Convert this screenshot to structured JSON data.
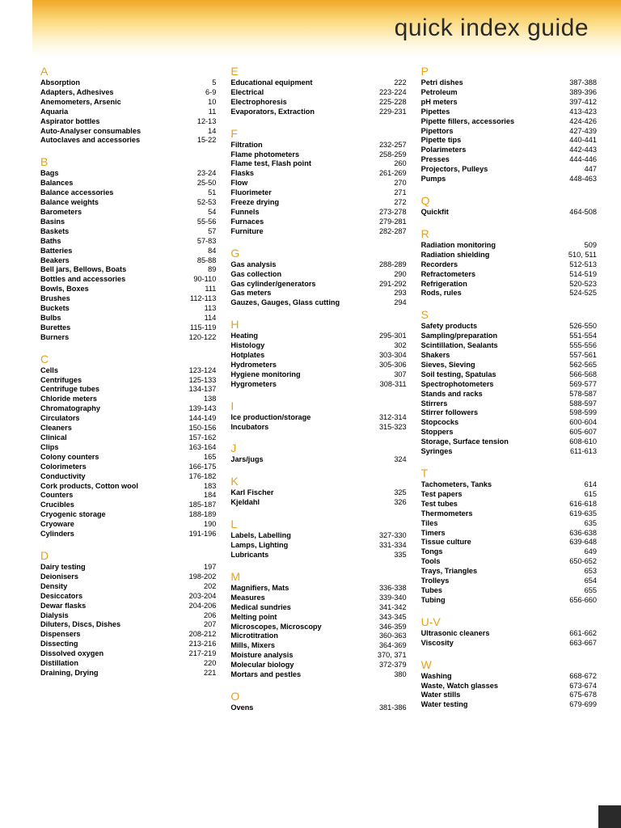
{
  "title": "quick index guide",
  "layout": {
    "columns": 3
  },
  "style": {
    "banner_gradient": [
      "#f0a828",
      "#fbd77a",
      "#fef3d1",
      "#ffffff"
    ],
    "letter_color": "#e8a017",
    "text_color": "#000000",
    "title_color": "#2a2a2a",
    "title_fontsize": 30,
    "letter_fontsize": 14,
    "row_fontsize": 9.2,
    "row_lineheight": 11.9,
    "corner_color": "#2a2a2a",
    "font_family": "Arial, Helvetica, sans-serif"
  },
  "columns": [
    [
      {
        "letter": "A",
        "items": [
          {
            "label": "Absorption",
            "pages": "5"
          },
          {
            "label": "Adapters, Adhesives",
            "pages": "6-9"
          },
          {
            "label": "Anemometers, Arsenic",
            "pages": "10"
          },
          {
            "label": "Aquaria",
            "pages": "11"
          },
          {
            "label": "Aspirator bottles",
            "pages": "12-13"
          },
          {
            "label": "Auto-Analyser consumables",
            "pages": "14"
          },
          {
            "label": "Autoclaves and accessories",
            "pages": "15-22"
          }
        ]
      },
      {
        "letter": "B",
        "items": [
          {
            "label": "Bags",
            "pages": "23-24"
          },
          {
            "label": "Balances",
            "pages": "25-50"
          },
          {
            "label": "Balance accessories",
            "pages": "51"
          },
          {
            "label": "Balance weights",
            "pages": "52-53"
          },
          {
            "label": "Barometers",
            "pages": "54"
          },
          {
            "label": "Basins",
            "pages": "55-56"
          },
          {
            "label": "Baskets",
            "pages": "57"
          },
          {
            "label": "Baths",
            "pages": "57-83"
          },
          {
            "label": "Batteries",
            "pages": "84"
          },
          {
            "label": "Beakers",
            "pages": "85-88"
          },
          {
            "label": "Bell jars, Bellows, Boats",
            "pages": "89"
          },
          {
            "label": "Bottles and accessories",
            "pages": "90-110"
          },
          {
            "label": "Bowls, Boxes",
            "pages": "111"
          },
          {
            "label": "Brushes",
            "pages": "112-113"
          },
          {
            "label": "Buckets",
            "pages": "113"
          },
          {
            "label": "Bulbs",
            "pages": "114"
          },
          {
            "label": "Burettes",
            "pages": "115-119"
          },
          {
            "label": "Burners",
            "pages": "120-122"
          }
        ]
      },
      {
        "letter": "C",
        "items": [
          {
            "label": "Cells",
            "pages": "123-124"
          },
          {
            "label": "Centrifuges",
            "pages": "125-133"
          },
          {
            "label": "Centrifuge tubes",
            "pages": "134-137"
          },
          {
            "label": "Chloride meters",
            "pages": "138"
          },
          {
            "label": "Chromatography",
            "pages": "139-143"
          },
          {
            "label": "Circulators",
            "pages": "144-149"
          },
          {
            "label": "Cleaners",
            "pages": "150-156"
          },
          {
            "label": "Clinical",
            "pages": "157-162"
          },
          {
            "label": "Clips",
            "pages": "163-164"
          },
          {
            "label": "Colony counters",
            "pages": "165"
          },
          {
            "label": "Colorimeters",
            "pages": "166-175"
          },
          {
            "label": "Conductivity",
            "pages": "176-182"
          },
          {
            "label": "Cork products, Cotton wool",
            "pages": "183"
          },
          {
            "label": "Counters",
            "pages": "184"
          },
          {
            "label": "Crucibles",
            "pages": "185-187"
          },
          {
            "label": "Cryogenic storage",
            "pages": "188-189"
          },
          {
            "label": "Cryoware",
            "pages": "190"
          },
          {
            "label": "Cylinders",
            "pages": "191-196"
          }
        ]
      },
      {
        "letter": "D",
        "items": [
          {
            "label": "Dairy testing",
            "pages": "197"
          },
          {
            "label": "Deionisers",
            "pages": "198-202"
          },
          {
            "label": "Density",
            "pages": "202"
          },
          {
            "label": "Desiccators",
            "pages": "203-204"
          },
          {
            "label": "Dewar flasks",
            "pages": "204-206"
          },
          {
            "label": "Dialysis",
            "pages": "206"
          },
          {
            "label": "Diluters, Discs, Dishes",
            "pages": "207"
          },
          {
            "label": "Dispensers",
            "pages": "208-212"
          },
          {
            "label": "Dissecting",
            "pages": "213-216"
          },
          {
            "label": "Dissolved oxygen",
            "pages": "217-219"
          },
          {
            "label": "Distillation",
            "pages": "220"
          },
          {
            "label": "Draining, Drying",
            "pages": "221"
          }
        ]
      }
    ],
    [
      {
        "letter": "E",
        "items": [
          {
            "label": "Educational equipment",
            "pages": "222"
          },
          {
            "label": "Electrical",
            "pages": "223-224"
          },
          {
            "label": "Electrophoresis",
            "pages": "225-228"
          },
          {
            "label": "Evaporators, Extraction",
            "pages": "229-231"
          }
        ]
      },
      {
        "letter": "F",
        "items": [
          {
            "label": "Filtration",
            "pages": "232-257"
          },
          {
            "label": "Flame photometers",
            "pages": "258-259"
          },
          {
            "label": "Flame test, Flash point",
            "pages": "260"
          },
          {
            "label": "Flasks",
            "pages": "261-269"
          },
          {
            "label": "Flow",
            "pages": "270"
          },
          {
            "label": "Fluorimeter",
            "pages": "271"
          },
          {
            "label": "Freeze drying",
            "pages": "272"
          },
          {
            "label": "Funnels",
            "pages": "273-278"
          },
          {
            "label": "Furnaces",
            "pages": "279-281"
          },
          {
            "label": "Furniture",
            "pages": "282-287"
          }
        ]
      },
      {
        "letter": "G",
        "items": [
          {
            "label": "Gas analysis",
            "pages": "288-289"
          },
          {
            "label": "Gas collection",
            "pages": "290"
          },
          {
            "label": "Gas cylinder/generators",
            "pages": "291-292"
          },
          {
            "label": "Gas meters",
            "pages": "293"
          },
          {
            "label": "Gauzes, Gauges, Glass cutting",
            "pages": "294"
          }
        ]
      },
      {
        "letter": "H",
        "items": [
          {
            "label": "Heating",
            "pages": "295-301"
          },
          {
            "label": "Histology",
            "pages": "302"
          },
          {
            "label": "Hotplates",
            "pages": "303-304"
          },
          {
            "label": "Hydrometers",
            "pages": "305-306"
          },
          {
            "label": "Hygiene monitoring",
            "pages": "307"
          },
          {
            "label": "Hygrometers",
            "pages": "308-311"
          }
        ]
      },
      {
        "letter": "I",
        "items": [
          {
            "label": "Ice production/storage",
            "pages": "312-314"
          },
          {
            "label": "Incubators",
            "pages": "315-323"
          }
        ]
      },
      {
        "letter": "J",
        "items": [
          {
            "label": "Jars/jugs",
            "pages": "324"
          }
        ]
      },
      {
        "letter": "K",
        "items": [
          {
            "label": "Karl Fischer",
            "pages": "325"
          },
          {
            "label": "Kjeldahl",
            "pages": "326"
          }
        ]
      },
      {
        "letter": "L",
        "items": [
          {
            "label": "Labels, Labelling",
            "pages": "327-330"
          },
          {
            "label": "Lamps, Lighting",
            "pages": "331-334"
          },
          {
            "label": "Lubricants",
            "pages": "335"
          }
        ]
      },
      {
        "letter": "M",
        "items": [
          {
            "label": "Magnifiers, Mats",
            "pages": "336-338"
          },
          {
            "label": "Measures",
            "pages": "339-340"
          },
          {
            "label": "Medical sundries",
            "pages": "341-342"
          },
          {
            "label": "Melting point",
            "pages": "343-345"
          },
          {
            "label": "Microscopes, Microscopy",
            "pages": "346-359"
          },
          {
            "label": "Microtitration",
            "pages": "360-363"
          },
          {
            "label": "Mills, Mixers",
            "pages": "364-369"
          },
          {
            "label": "Moisture analysis",
            "pages": "370, 371"
          },
          {
            "label": "Molecular biology",
            "pages": "372-379"
          },
          {
            "label": "Mortars and pestles",
            "pages": "380"
          }
        ]
      },
      {
        "letter": "O",
        "items": [
          {
            "label": "Ovens",
            "pages": "381-386"
          }
        ]
      }
    ],
    [
      {
        "letter": "P",
        "items": [
          {
            "label": "Petri dishes",
            "pages": "387-388"
          },
          {
            "label": "Petroleum",
            "pages": "389-396"
          },
          {
            "label": "pH meters",
            "pages": "397-412"
          },
          {
            "label": "Pipettes",
            "pages": "413-423"
          },
          {
            "label": "Pipette fillers, accessories",
            "pages": "424-426"
          },
          {
            "label": "Pipettors",
            "pages": "427-439"
          },
          {
            "label": "Pipette tips",
            "pages": "440-441"
          },
          {
            "label": "Polarimeters",
            "pages": "442-443"
          },
          {
            "label": "Presses",
            "pages": "444-446"
          },
          {
            "label": "Projectors, Pulleys",
            "pages": "447"
          },
          {
            "label": "Pumps",
            "pages": "448-463"
          }
        ]
      },
      {
        "letter": "Q",
        "items": [
          {
            "label": "Quickfit",
            "pages": "464-508"
          }
        ]
      },
      {
        "letter": "R",
        "items": [
          {
            "label": "Radiation monitoring",
            "pages": "509"
          },
          {
            "label": "Radiation shielding",
            "pages": "510, 511"
          },
          {
            "label": "Recorders",
            "pages": "512-513"
          },
          {
            "label": "Refractometers",
            "pages": "514-519"
          },
          {
            "label": "Refrigeration",
            "pages": "520-523"
          },
          {
            "label": "Rods, rules",
            "pages": "524-525"
          }
        ]
      },
      {
        "letter": "S",
        "items": [
          {
            "label": "Safety products",
            "pages": "526-550"
          },
          {
            "label": "Sampling/preparation",
            "pages": "551-554"
          },
          {
            "label": "Scintillation, Sealants",
            "pages": "555-556"
          },
          {
            "label": "Shakers",
            "pages": "557-561"
          },
          {
            "label": "Sieves, Sieving",
            "pages": "562-565"
          },
          {
            "label": "Soil testing, Spatulas",
            "pages": "566-568"
          },
          {
            "label": "Spectrophotometers",
            "pages": "569-577"
          },
          {
            "label": "Stands and racks",
            "pages": "578-587"
          },
          {
            "label": "Stirrers",
            "pages": "588-597"
          },
          {
            "label": "Stirrer followers",
            "pages": "598-599"
          },
          {
            "label": "Stopcocks",
            "pages": "600-604"
          },
          {
            "label": "Stoppers",
            "pages": "605-607"
          },
          {
            "label": "Storage, Surface tension",
            "pages": "608-610"
          },
          {
            "label": "Syringes",
            "pages": "611-613"
          }
        ]
      },
      {
        "letter": "T",
        "items": [
          {
            "label": "Tachometers, Tanks",
            "pages": "614"
          },
          {
            "label": "Test papers",
            "pages": "615"
          },
          {
            "label": "Test tubes",
            "pages": "616-618"
          },
          {
            "label": "Thermometers",
            "pages": "619-635"
          },
          {
            "label": "Tiles",
            "pages": "635"
          },
          {
            "label": "Timers",
            "pages": "636-638"
          },
          {
            "label": "Tissue culture",
            "pages": "639-648"
          },
          {
            "label": "Tongs",
            "pages": "649"
          },
          {
            "label": "Tools",
            "pages": "650-652"
          },
          {
            "label": "Trays, Triangles",
            "pages": "653"
          },
          {
            "label": "Trolleys",
            "pages": "654"
          },
          {
            "label": "Tubes",
            "pages": "655"
          },
          {
            "label": "Tubing",
            "pages": "656-660"
          }
        ]
      },
      {
        "letter": "U-V",
        "items": [
          {
            "label": "Ultrasonic cleaners",
            "pages": "661-662"
          },
          {
            "label": "Viscosity",
            "pages": "663-667"
          }
        ]
      },
      {
        "letter": "W",
        "items": [
          {
            "label": "Washing",
            "pages": "668-672"
          },
          {
            "label": "Waste, Watch glasses",
            "pages": "673-674"
          },
          {
            "label": "Water stills",
            "pages": "675-678"
          },
          {
            "label": "Water testing",
            "pages": "679-699"
          }
        ]
      }
    ]
  ]
}
